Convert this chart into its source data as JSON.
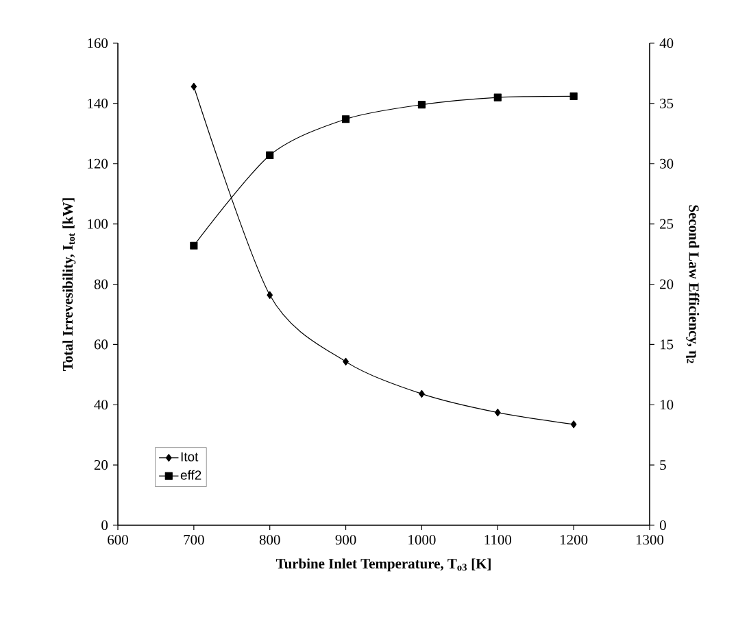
{
  "chart_data": {
    "type": "line",
    "xlabel": "Turbine Inlet Temperature, T$_{o3}$ [K]",
    "ylabel": "Total Irrevesibility, I$_{tot}$ [kW]",
    "y2label": "Second Law Efficiency, η$_{2}$",
    "x": [
      700,
      800,
      900,
      1000,
      1100,
      1200
    ],
    "series": [
      {
        "name": "Itot",
        "color": "#000000",
        "marker": "diamond",
        "values": [
          145.6,
          76.4,
          54.3,
          43.6,
          37.4,
          33.5
        ]
      },
      {
        "name": "eff2",
        "color": "#000000",
        "marker": "square",
        "axis": "y2",
        "values": [
          23.2,
          30.7,
          33.7,
          34.9,
          35.5,
          35.6
        ]
      }
    ],
    "xlim": [
      600,
      1300
    ],
    "xticks": [
      600,
      700,
      800,
      900,
      1000,
      1100,
      1200,
      1300
    ],
    "ylim": [
      0,
      160
    ],
    "yticks": [
      0,
      20,
      40,
      60,
      80,
      100,
      120,
      140,
      160
    ],
    "y2lim": [
      0,
      40
    ],
    "y2ticks": [
      0,
      5,
      10,
      15,
      20,
      25,
      30,
      35,
      40
    ],
    "legend": "bottom left",
    "grid": false,
    "line_style": "solid"
  }
}
